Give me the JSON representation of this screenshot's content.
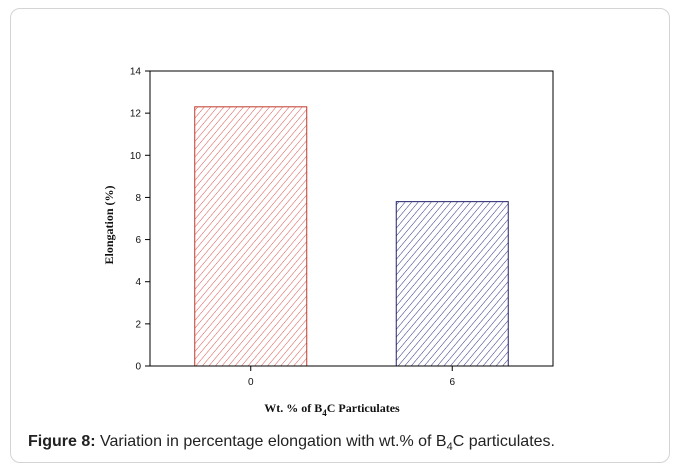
{
  "chart_data": {
    "type": "bar",
    "categories": [
      "0",
      "6"
    ],
    "values": [
      12.3,
      7.8
    ],
    "xlabel": {
      "pre": "Wt. % of B",
      "sub": "4",
      "post": "C Particulates"
    },
    "ylabel": "Elongation (%)",
    "ylim": [
      0,
      14
    ],
    "yticks": [
      "0",
      "2",
      "4",
      "6",
      "8",
      "10",
      "12",
      "14"
    ],
    "grid": false,
    "bar_styles": [
      {
        "stroke": "#c0392b",
        "hatch": "#d9534f"
      },
      {
        "stroke": "#22226b",
        "hatch": "#2f2f80"
      }
    ]
  },
  "caption": {
    "label": "Figure 8:",
    "text_pre": " Variation in percentage elongation with wt.% of B",
    "sub": "4",
    "text_post": "C particulates."
  }
}
